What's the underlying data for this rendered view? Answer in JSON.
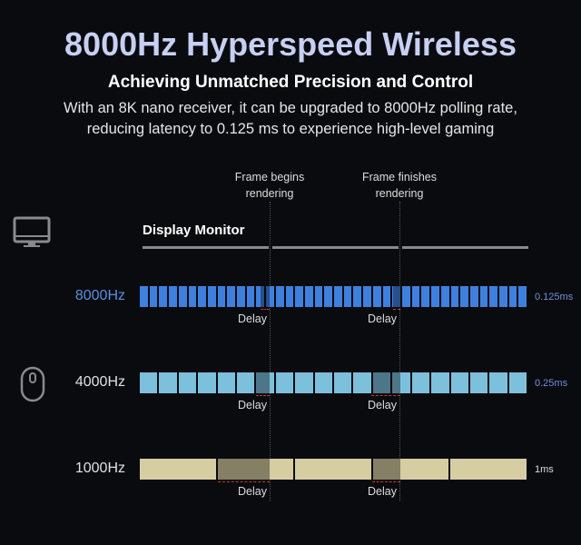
{
  "header": {
    "title": "8000Hz Hyperspeed Wireless",
    "subtitle": "Achieving Unmatched Precision and Control",
    "description_line1": "With an 8K nano receiver, it can be upgraded to 8000Hz polling rate,",
    "description_line2": "reducing latency to 0.125 ms to experience high-level gaming"
  },
  "markers": {
    "begin_line1": "Frame begins",
    "begin_line2": "rendering",
    "finish_line1": "Frame finishes",
    "finish_line2": "rendering"
  },
  "display": {
    "label": "Display Monitor",
    "icon": "monitor-icon"
  },
  "mouse": {
    "icon": "mouse-icon"
  },
  "rows": [
    {
      "rate": "8000Hz",
      "interval": "0.125ms",
      "segments": 40,
      "color": "#3f80de",
      "label_color": "#5b8fe0",
      "delay1": "Delay",
      "delay2": "Delay"
    },
    {
      "rate": "4000Hz",
      "interval": "0.25ms",
      "segments": 20,
      "color": "#7dc0dc",
      "label_color": "#e0e0e0",
      "delay1": "Delay",
      "delay2": "Delay"
    },
    {
      "rate": "1000Hz",
      "interval": "1ms",
      "segments": 5,
      "color": "#d6cda3",
      "label_color": "#e0e0e0",
      "delay1": "Delay",
      "delay2": "Delay"
    }
  ],
  "colors": {
    "background": "#0a0b0f",
    "title": "#c7d0f2",
    "delay_marker": "#c0392b"
  }
}
